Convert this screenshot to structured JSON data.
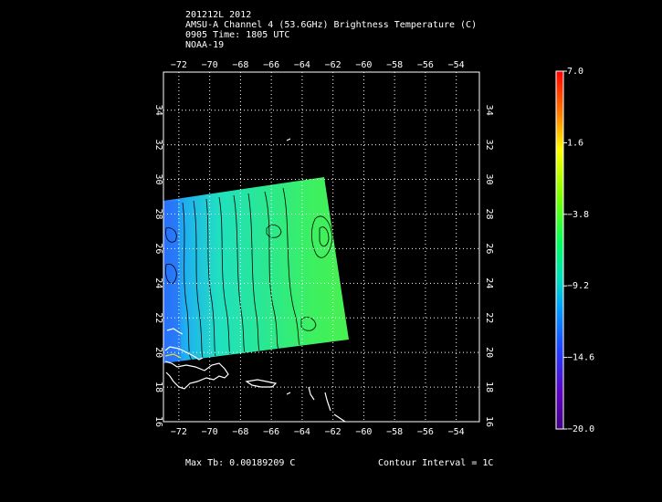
{
  "header": {
    "line1": "201212L 2012",
    "line2": "AMSU-A Channel 4 (53.6GHz) Brightness Temperature (C)",
    "line3": "0905 Time: 1805 UTC",
    "line4": "NOAA-19"
  },
  "map": {
    "lon_ticks": [
      -72,
      -70,
      -68,
      -66,
      -64,
      -62,
      -60,
      -58,
      -56,
      -54
    ],
    "lat_ticks": [
      16,
      18,
      20,
      22,
      24,
      26,
      28,
      30,
      32,
      34
    ],
    "lon_range": [
      -73,
      -52
    ],
    "lat_range": [
      16,
      36
    ],
    "swath_gradient": [
      "#2a6cff",
      "#1fa8f0",
      "#1ee0c0",
      "#22e890",
      "#3cf060",
      "#44f050"
    ],
    "coast_color": "#ffffff",
    "contour_color": "#000000"
  },
  "colorbar": {
    "labels": [
      "7.0",
      "1.6",
      "-3.8",
      "-9.2",
      "-14.6",
      "-20.0"
    ],
    "gradient": [
      "#ff0000",
      "#ff8000",
      "#ffff00",
      "#80ff00",
      "#00ff60",
      "#00e0c0",
      "#00a0ff",
      "#2040ff",
      "#6000c0",
      "#400080"
    ]
  },
  "footer": {
    "max_tb": "Max Tb:  0.00189209  C",
    "contour": "Contour Interval = 1C"
  }
}
